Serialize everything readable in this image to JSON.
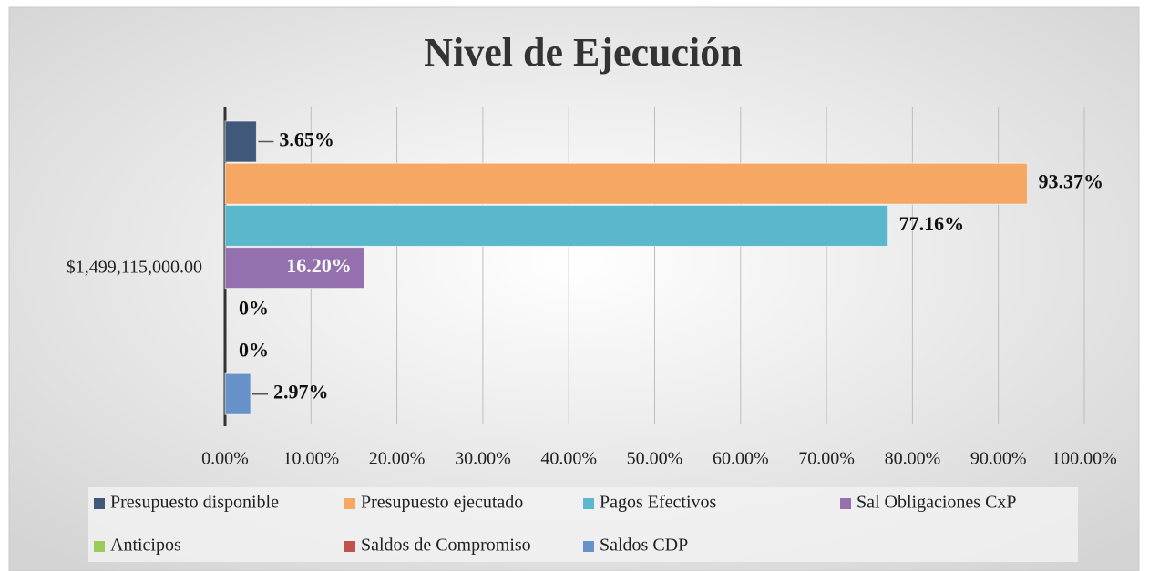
{
  "chart_data": {
    "type": "bar",
    "orientation": "horizontal",
    "title": "Nivel de Ejecución",
    "categories": [
      "$1,499,115,000.00"
    ],
    "series": [
      {
        "name": "Presupuesto disponible",
        "color": "#40587a",
        "values": [
          3.65
        ],
        "value_labels": [
          "3.65%"
        ]
      },
      {
        "name": "Presupuesto ejecutado",
        "color": "#f6a763",
        "values": [
          93.37
        ],
        "value_labels": [
          "93.37%"
        ]
      },
      {
        "name": "Pagos Efectivos",
        "color": "#5bb7cb",
        "values": [
          77.16
        ],
        "value_labels": [
          "77.16%"
        ]
      },
      {
        "name": "Sal Obligaciones CxP",
        "color": "#9471ae",
        "values": [
          16.2
        ],
        "value_labels": [
          "16.20%"
        ]
      },
      {
        "name": "Anticipos",
        "color": "#9cc95b",
        "values": [
          0
        ],
        "value_labels": [
          "0%"
        ]
      },
      {
        "name": "Saldos de Compromiso",
        "color": "#c2514e",
        "values": [
          0
        ],
        "value_labels": [
          "0%"
        ]
      },
      {
        "name": "Saldos CDP",
        "color": "#6791c9",
        "values": [
          2.97
        ],
        "value_labels": [
          "2.97%"
        ]
      }
    ],
    "xlim": [
      0,
      100
    ],
    "xticks": [
      {
        "value": 0,
        "label": "0.00%"
      },
      {
        "value": 10,
        "label": "10.00%"
      },
      {
        "value": 20,
        "label": "20.00%"
      },
      {
        "value": 30,
        "label": "30.00%"
      },
      {
        "value": 40,
        "label": "40.00%"
      },
      {
        "value": 50,
        "label": "50.00%"
      },
      {
        "value": 60,
        "label": "60.00%"
      },
      {
        "value": 70,
        "label": "70.00%"
      },
      {
        "value": 80,
        "label": "80.00%"
      },
      {
        "value": 90,
        "label": "90.00%"
      },
      {
        "value": 100,
        "label": "100.00%"
      }
    ],
    "grid": true,
    "legend": "bottom"
  }
}
